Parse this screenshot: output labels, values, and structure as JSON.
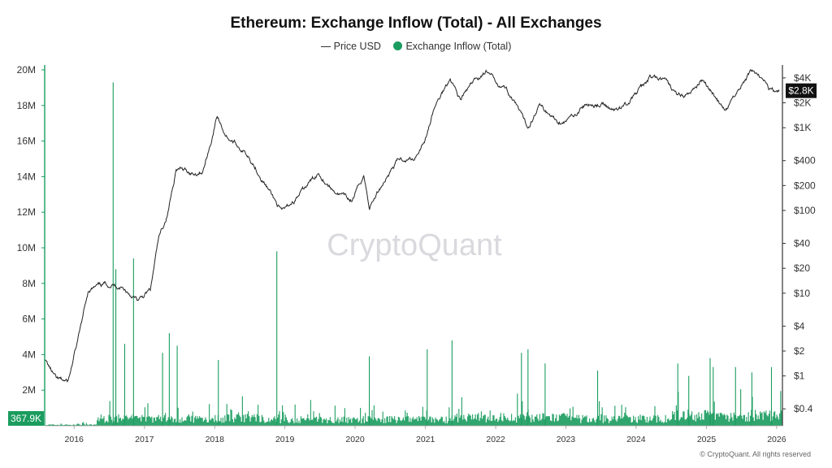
{
  "chart_data": {
    "type": "bar",
    "title": "Ethereum: Exchange Inflow (Total) - All Exchanges",
    "legend": [
      {
        "name": "Price USD",
        "style": "line",
        "color": "#222222"
      },
      {
        "name": "Exchange Inflow (Total)",
        "style": "dot",
        "color": "#1a9c5e"
      }
    ],
    "x_ticks": [
      "2016",
      "2017",
      "2018",
      "2019",
      "2020",
      "2021",
      "2022",
      "2023",
      "2024",
      "2025",
      "2026"
    ],
    "x_range": [
      "2015-08-01",
      "2026-01-31"
    ],
    "y_left": {
      "ticks": [
        "20M",
        "18M",
        "16M",
        "14M",
        "12M",
        "10M",
        "8M",
        "6M",
        "4M",
        "2M"
      ],
      "range": [
        0,
        20000000
      ]
    },
    "y_right": {
      "scale": "log",
      "ticks": [
        "$4K",
        "$2K",
        "$1K",
        "$400",
        "$200",
        "$100",
        "$40",
        "$20",
        "$10",
        "$4",
        "$2",
        "$1",
        "$0.4"
      ],
      "range": [
        0.25,
        5000
      ]
    },
    "current_value_left": "367.9K",
    "current_value_right": "$2.8K",
    "series": [
      {
        "name": "Price USD",
        "type": "line",
        "color": "#222222",
        "x": [
          "2015-08-01",
          "2015-10-01",
          "2015-12-01",
          "2016-02-01",
          "2016-03-15",
          "2016-06-15",
          "2016-09-01",
          "2016-12-01",
          "2017-02-01",
          "2017-03-15",
          "2017-05-01",
          "2017-06-15",
          "2017-08-01",
          "2017-09-15",
          "2017-11-01",
          "2017-12-15",
          "2018-01-13",
          "2018-03-01",
          "2018-05-01",
          "2018-07-01",
          "2018-09-15",
          "2018-12-15",
          "2019-03-01",
          "2019-06-25",
          "2019-09-01",
          "2019-12-15",
          "2020-02-15",
          "2020-03-15",
          "2020-06-01",
          "2020-08-15",
          "2020-11-01",
          "2021-01-01",
          "2021-02-15",
          "2021-05-10",
          "2021-06-30",
          "2021-09-01",
          "2021-11-10",
          "2022-01-01",
          "2022-03-01",
          "2022-06-18",
          "2022-08-15",
          "2022-11-15",
          "2023-01-01",
          "2023-04-15",
          "2023-07-01",
          "2023-09-15",
          "2023-12-01",
          "2024-03-12",
          "2024-06-01",
          "2024-08-05",
          "2024-10-01",
          "2024-12-15",
          "2025-02-01",
          "2025-04-09",
          "2025-06-01",
          "2025-08-24",
          "2025-10-01",
          "2025-11-20",
          "2026-01-15"
        ],
        "values": [
          1.6,
          0.9,
          0.85,
          3.5,
          11,
          13,
          12,
          8,
          11,
          45,
          90,
          330,
          300,
          280,
          300,
          700,
          1400,
          800,
          600,
          450,
          220,
          95,
          140,
          290,
          180,
          130,
          270,
          110,
          230,
          420,
          420,
          740,
          1700,
          4100,
          2200,
          3400,
          4800,
          3700,
          2900,
          1000,
          1900,
          1200,
          1200,
          1900,
          1900,
          1600,
          2100,
          4000,
          3700,
          2400,
          2500,
          3900,
          2700,
          1500,
          2600,
          4900,
          4300,
          3000,
          2800
        ]
      },
      {
        "name": "Exchange Inflow (Total)",
        "type": "bar",
        "color": "#1a9c5e",
        "peaks_x": [
          "2016-07-22",
          "2016-08-05",
          "2016-09-20",
          "2016-11-05",
          "2017-04-05",
          "2017-05-10",
          "2017-06-20",
          "2018-01-20",
          "2018-11-20",
          "2020-03-15",
          "2021-01-10",
          "2021-05-19",
          "2022-05-15",
          "2022-06-18",
          "2022-09-15",
          "2023-06-15",
          "2024-08-05",
          "2024-10-01",
          "2025-01-20",
          "2025-02-05",
          "2025-06-01",
          "2025-08-25",
          "2025-12-05"
        ],
        "peaks_values": [
          19300000,
          8800000,
          4600000,
          9400000,
          4100000,
          5200000,
          4500000,
          3700000,
          9800000,
          3900000,
          4300000,
          4800000,
          4100000,
          4300000,
          3500000,
          3100000,
          3500000,
          2800000,
          3800000,
          3300000,
          3300000,
          3000000,
          3300000
        ]
      }
    ]
  },
  "watermark": "CryptoQuant",
  "footer": "© CryptoQuant. All rights reserved"
}
